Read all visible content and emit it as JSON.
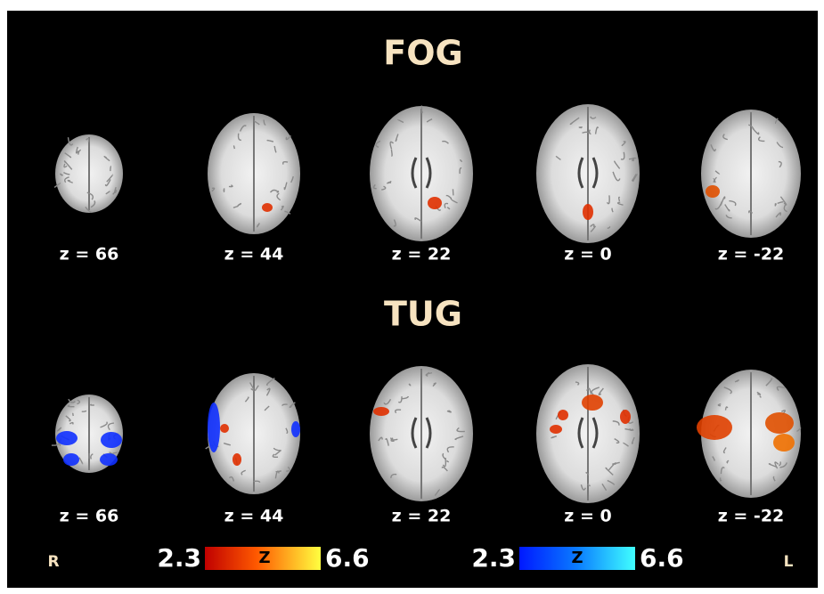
{
  "panels": [
    {
      "title": "FOG",
      "slices": [
        "z = 66",
        "z = 44",
        "z = 22",
        "z = 0",
        "z = -22"
      ]
    },
    {
      "title": "TUG",
      "slices": [
        "z = 66",
        "z = 44",
        "z = 22",
        "z = 0",
        "z = -22"
      ]
    }
  ],
  "colorbars": [
    {
      "min": "2.3",
      "label": "Z",
      "max": "6.6"
    },
    {
      "min": "2.3",
      "label": "Z",
      "max": "6.6"
    }
  ],
  "orientation": {
    "left": "R",
    "right": "L"
  }
}
